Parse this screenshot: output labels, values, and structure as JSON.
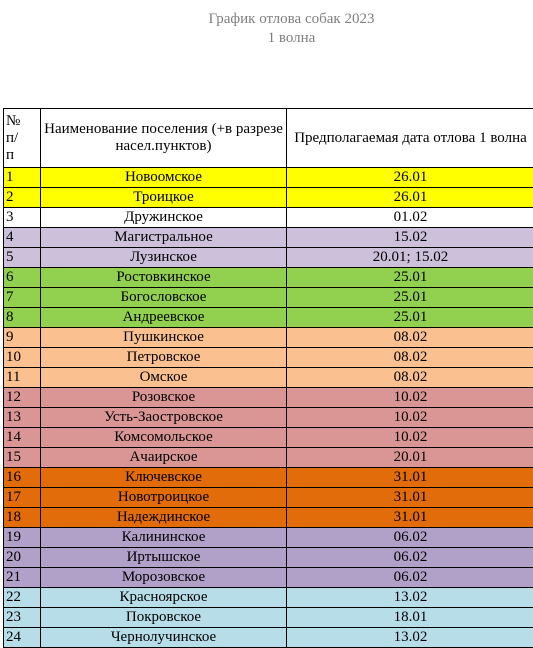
{
  "title": "График отлова собак 2023",
  "subtitle": "1 волна",
  "table": {
    "header": [
      "№\nп/\nп",
      "Наименование поселения (+в разрезе насел.пунктов)",
      "Предполагаемая дата отлова 1 волна"
    ],
    "rows": [
      {
        "number": "1",
        "name": "Новоомское",
        "date": "26.01",
        "color": "#ffff00"
      },
      {
        "number": "2",
        "name": "Троицкое",
        "date": "26.01",
        "color": "#ffff00"
      },
      {
        "number": "3",
        "name": "Дружинское",
        "date": "01.02",
        "color": "#ffffff"
      },
      {
        "number": "4",
        "name": "Магистральное",
        "date": "15.02",
        "color": "#ccc0da"
      },
      {
        "number": "5",
        "name": "Лузинское",
        "date": "20.01; 15.02",
        "color": "#ccc0da"
      },
      {
        "number": "6",
        "name": "Ростовкинское",
        "date": "25.01",
        "color": "#92d050"
      },
      {
        "number": "7",
        "name": "Богословское",
        "date": "25.01",
        "color": "#92d050"
      },
      {
        "number": "8",
        "name": "Андреевское",
        "date": "25.01",
        "color": "#92d050"
      },
      {
        "number": "9",
        "name": "Пушкинское",
        "date": "08.02",
        "color": "#fac090"
      },
      {
        "number": "10",
        "name": "Петровское",
        "date": "08.02",
        "color": "#fac090"
      },
      {
        "number": "11",
        "name": "Омское",
        "date": "08.02",
        "color": "#fac090"
      },
      {
        "number": "12",
        "name": "Розовское",
        "date": "10.02",
        "color": "#da9694"
      },
      {
        "number": "13",
        "name": "Усть-Заостровское",
        "date": "10.02",
        "color": "#da9694"
      },
      {
        "number": "14",
        "name": "Комсомольское",
        "date": "10.02",
        "color": "#da9694"
      },
      {
        "number": "15",
        "name": "Ачаирское",
        "date": "20.01",
        "color": "#da9694"
      },
      {
        "number": "16",
        "name": "Ключевское",
        "date": "31.01",
        "color": "#e26b0a"
      },
      {
        "number": "17",
        "name": "Новотроицкое",
        "date": "31.01",
        "color": "#e26b0a"
      },
      {
        "number": "18",
        "name": "Надеждинское",
        "date": "31.01",
        "color": "#e26b0a"
      },
      {
        "number": "19",
        "name": "Калининское",
        "date": "06.02",
        "color": "#b1a0c7"
      },
      {
        "number": "20",
        "name": "Иртышское",
        "date": "06.02",
        "color": "#b1a0c7"
      },
      {
        "number": "21",
        "name": "Морозовское",
        "date": "06.02",
        "color": "#b1a0c7"
      },
      {
        "number": "22",
        "name": "Красноярское",
        "date": "13.02",
        "color": "#b7dee8"
      },
      {
        "number": "23",
        "name": "Покровское",
        "date": "18.01",
        "color": "#b7dee8"
      },
      {
        "number": "24",
        "name": "Чернолучинское",
        "date": "13.02",
        "color": "#b7dee8"
      }
    ]
  }
}
